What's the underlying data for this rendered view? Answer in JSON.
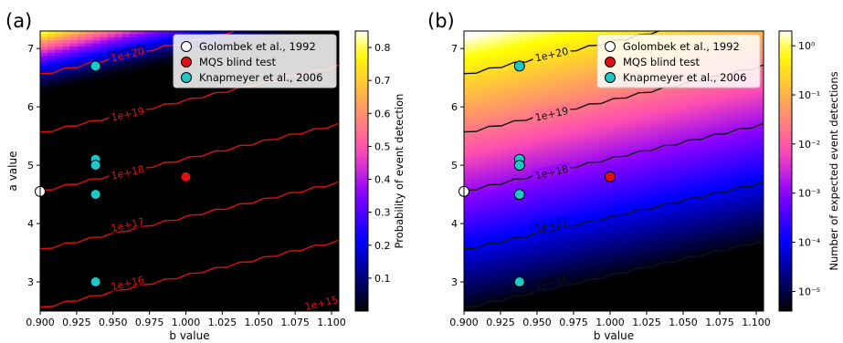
{
  "panels": [
    {
      "label": "(a)",
      "colorbar": {
        "label": "Probability of event detection",
        "scale": "linear",
        "range": [
          0.0,
          0.85
        ],
        "ticks": [
          "0.1",
          "0.2",
          "0.3",
          "0.4",
          "0.5",
          "0.6",
          "0.7",
          "0.8"
        ],
        "tick_values": [
          0.1,
          0.2,
          0.3,
          0.4,
          0.5,
          0.6,
          0.7,
          0.8
        ],
        "colormap": "gnuplot2"
      },
      "contour_color": "#e01010",
      "contour_label_color": "#e01010",
      "show_ylabel": true
    },
    {
      "label": "(b)",
      "colorbar": {
        "label": "Number of expected event detections",
        "scale": "log",
        "range_exp": [
          -5.4,
          0.3
        ],
        "ticks": [
          "10⁰",
          "10⁻¹",
          "10⁻²",
          "10⁻³",
          "10⁻⁴",
          "10⁻⁵"
        ],
        "tick_exponents": [
          0,
          -1,
          -2,
          -3,
          -4,
          -5
        ],
        "colormap": "gnuplot2"
      },
      "contour_color": "#111111",
      "contour_label_color": "#111111",
      "show_ylabel": false
    }
  ],
  "chart_data": {
    "type": "heatmap",
    "xlabel": "b value",
    "ylabel": "a value",
    "xlim": [
      0.9,
      1.105
    ],
    "ylim": [
      2.5,
      7.3
    ],
    "xticks": [
      "0.900",
      "0.925",
      "0.950",
      "0.975",
      "1.000",
      "1.025",
      "1.050",
      "1.075",
      "1.100"
    ],
    "xtick_values": [
      0.9,
      0.925,
      0.95,
      0.975,
      1.0,
      1.025,
      1.05,
      1.075,
      1.1
    ],
    "yticks": [
      "3",
      "4",
      "5",
      "6",
      "7"
    ],
    "ytick_values": [
      3,
      4,
      5,
      6,
      7
    ],
    "contours": [
      {
        "label": "1e+16",
        "points": [
          [
            0.9,
            2.55
          ],
          [
            1.105,
            3.7
          ]
        ],
        "label_at": [
          0.96,
          2.98
        ]
      },
      {
        "label": "1e+17",
        "points": [
          [
            0.9,
            3.55
          ],
          [
            1.105,
            4.7
          ]
        ],
        "label_at": [
          0.96,
          3.98
        ]
      },
      {
        "label": "1e+18",
        "points": [
          [
            0.9,
            4.55
          ],
          [
            1.105,
            5.7
          ]
        ],
        "label_at": [
          0.96,
          4.88
        ]
      },
      {
        "label": "1e+19",
        "points": [
          [
            0.9,
            5.55
          ],
          [
            1.105,
            6.7
          ]
        ],
        "label_at": [
          0.96,
          5.88
        ]
      },
      {
        "label": "1e+20",
        "points": [
          [
            0.9,
            6.55
          ],
          [
            1.105,
            7.7
          ]
        ],
        "label_at": [
          0.96,
          6.9
        ]
      }
    ],
    "extra_contour_label_a": {
      "label": "1e+15",
      "at": [
        1.093,
        2.64
      ]
    },
    "series": [
      {
        "name": "Golombek et al., 1992",
        "color": "#ffffff",
        "points": [
          [
            0.9,
            4.55
          ]
        ]
      },
      {
        "name": "MQS blind test",
        "color": "#e01010",
        "points": [
          [
            1.0,
            4.8
          ]
        ]
      },
      {
        "name": "Knapmeyer et al., 2006",
        "color": "#1ec8c8",
        "points": [
          [
            0.938,
            6.7
          ],
          [
            0.938,
            5.1
          ],
          [
            0.938,
            5.0
          ],
          [
            0.938,
            4.5
          ],
          [
            0.938,
            3.0
          ]
        ]
      }
    ],
    "legend": "top-right"
  }
}
